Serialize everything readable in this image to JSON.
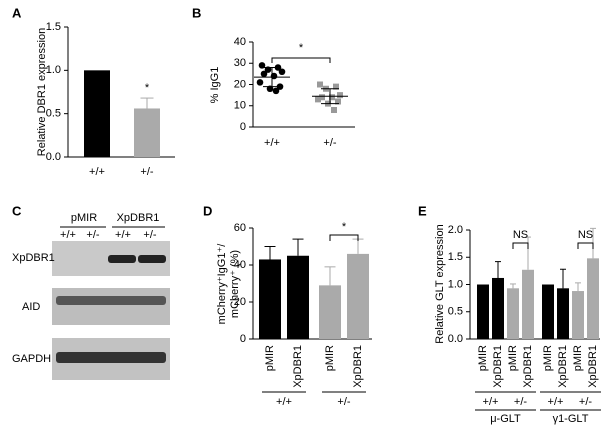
{
  "chart_data": [
    {
      "panel": "A",
      "type": "bar",
      "ylabel": "Relative DBR1 expression",
      "categories": [
        "+/+",
        "+/-"
      ],
      "values": [
        1.0,
        0.56
      ],
      "errors": [
        null,
        0.12
      ],
      "colors": [
        "#000000",
        "#aaaaaa"
      ],
      "ylim": [
        0,
        1.5
      ],
      "yticks": [
        {
          "value": 0,
          "label": "0.0"
        },
        {
          "value": 0.5,
          "label": "0.5"
        },
        {
          "value": 1.0,
          "label": "1.0"
        },
        {
          "value": 1.5,
          "label": "1.5"
        }
      ],
      "annotations": [
        "*"
      ]
    },
    {
      "panel": "B",
      "type": "scatter",
      "ylabel": "% IgG1",
      "ylim": [
        0,
        40
      ],
      "yticks": [
        0,
        10,
        20,
        30,
        40
      ],
      "series": [
        {
          "name": "+/+",
          "color": "#000000",
          "marker": "circle",
          "values": [
            29,
            28,
            27,
            26,
            25,
            24,
            21,
            19,
            18,
            17
          ],
          "mean": 23.5,
          "sd": 4.5
        },
        {
          "name": "+/-",
          "color": "#999999",
          "marker": "square",
          "values": [
            20,
            19,
            18,
            15,
            14,
            14,
            13,
            12,
            11,
            8
          ],
          "mean": 14.5,
          "sd": 3.5
        }
      ],
      "annotations": [
        "*"
      ]
    },
    {
      "panel": "D",
      "type": "bar",
      "ylabel": [
        "mCherry⁺IgG1⁺/",
        "mCherry⁺ (%)"
      ],
      "categories": [
        "pMIR",
        "XpDBR1",
        "pMIR",
        "XpDBR1"
      ],
      "groups": [
        "+/+",
        "+/-"
      ],
      "values": [
        43,
        45,
        29,
        46
      ],
      "errors": [
        7,
        9,
        10,
        8
      ],
      "colors": [
        "#000000",
        "#000000",
        "#aaaaaa",
        "#aaaaaa"
      ],
      "ylim": [
        0,
        60
      ],
      "yticks": [
        0,
        20,
        40,
        60
      ],
      "annotations": [
        "*"
      ]
    },
    {
      "panel": "E",
      "type": "bar",
      "ylabel": "Relative GLT expression",
      "categories": [
        "pMIR",
        "XpDBR1",
        "pMIR",
        "XpDBR1",
        "pMIR",
        "XpDBR1",
        "pMIR",
        "XpDBR1"
      ],
      "groups": [
        "+/+",
        "+/-",
        "+/+",
        "+/-"
      ],
      "supergroups": [
        "μ-GLT",
        "γ1-GLT"
      ],
      "values": [
        1.0,
        1.12,
        0.93,
        1.27,
        1.0,
        0.93,
        0.88,
        1.48
      ],
      "errors": [
        null,
        0.3,
        0.08,
        0.6,
        null,
        0.35,
        0.15,
        0.55
      ],
      "colors": [
        "#000000",
        "#000000",
        "#aaaaaa",
        "#aaaaaa",
        "#000000",
        "#000000",
        "#aaaaaa",
        "#aaaaaa"
      ],
      "ylim": [
        0,
        2.0
      ],
      "yticks": [
        {
          "value": 0,
          "label": "0.0"
        },
        {
          "value": 0.5,
          "label": "0.5"
        },
        {
          "value": 1.0,
          "label": "1.0"
        },
        {
          "value": 1.5,
          "label": "1.5"
        },
        {
          "value": 2.0,
          "label": "2.0"
        }
      ],
      "annotations": [
        "NS",
        "NS"
      ]
    }
  ],
  "blot": {
    "panel": "C",
    "groups": [
      "pMIR",
      "XpDBR1"
    ],
    "genotypes": [
      "+/+",
      "+/-",
      "+/+",
      "+/-"
    ],
    "rows": [
      "XpDBR1",
      "AID",
      "GAPDH"
    ]
  }
}
